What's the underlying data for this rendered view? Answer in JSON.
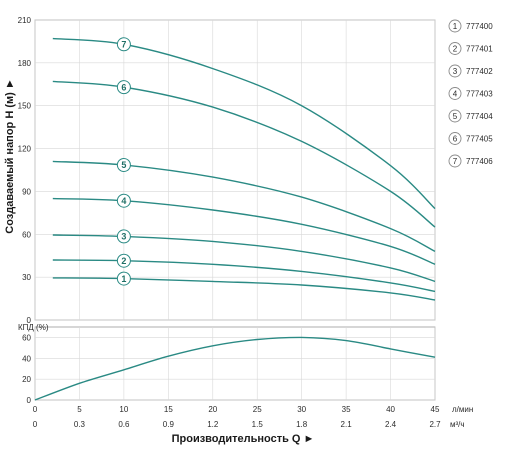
{
  "chart_data": [
    {
      "type": "line",
      "ylabel": "Создаваемый напор H (м) ►",
      "ylim": [
        0,
        210
      ],
      "yticks": [
        "0",
        "30",
        "60",
        "90",
        "120",
        "150",
        "180",
        "210"
      ],
      "xlim": [
        0,
        45
      ],
      "grid": true,
      "line_color": "#2a8a84",
      "series": [
        {
          "name": "1",
          "x": [
            2,
            10,
            20,
            30,
            40,
            45
          ],
          "y": [
            29.5,
            29,
            27,
            24.5,
            19,
            14
          ]
        },
        {
          "name": "2",
          "x": [
            2,
            10,
            20,
            30,
            40,
            45
          ],
          "y": [
            42,
            41.5,
            39,
            34,
            26,
            20
          ]
        },
        {
          "name": "3",
          "x": [
            2,
            10,
            20,
            30,
            40,
            45
          ],
          "y": [
            59.5,
            58.5,
            55,
            48,
            36.5,
            27
          ]
        },
        {
          "name": "4",
          "x": [
            2,
            10,
            20,
            30,
            40,
            45
          ],
          "y": [
            85,
            83.5,
            77,
            67,
            51.5,
            39
          ]
        },
        {
          "name": "5",
          "x": [
            2,
            10,
            20,
            30,
            40,
            45
          ],
          "y": [
            111,
            108.5,
            100,
            86,
            64,
            48
          ]
        },
        {
          "name": "6",
          "x": [
            2,
            10,
            20,
            30,
            40,
            45
          ],
          "y": [
            167,
            163,
            149,
            125,
            90,
            65
          ]
        },
        {
          "name": "7",
          "x": [
            2,
            10,
            20,
            30,
            40,
            45
          ],
          "y": [
            197,
            193,
            176,
            150,
            108,
            78
          ]
        }
      ],
      "marker_x": 10,
      "legend": [
        {
          "num": "1",
          "model": "777400"
        },
        {
          "num": "2",
          "model": "777401"
        },
        {
          "num": "3",
          "model": "777402"
        },
        {
          "num": "4",
          "model": "777403"
        },
        {
          "num": "5",
          "model": "777404"
        },
        {
          "num": "6",
          "model": "777405"
        },
        {
          "num": "7",
          "model": "777406"
        }
      ],
      "legend_placement": "right"
    },
    {
      "type": "line",
      "ylabel": "КПД (%)",
      "ylim": [
        0,
        70
      ],
      "yticks": [
        "0",
        "20",
        "40",
        "60"
      ],
      "xlim": [
        0,
        45
      ],
      "grid": true,
      "line_color": "#2a8a84",
      "series": [
        {
          "name": "КПД",
          "x": [
            0,
            5,
            10,
            15,
            20,
            25,
            30,
            35,
            40,
            45
          ],
          "y": [
            0,
            16,
            29,
            42,
            52,
            58,
            60,
            57,
            49,
            41
          ]
        }
      ]
    }
  ],
  "x_axis": {
    "ticks_lmin": [
      "0",
      "5",
      "10",
      "15",
      "20",
      "25",
      "30",
      "35",
      "40",
      "45"
    ],
    "ticks_m3h": [
      "0",
      "0.3",
      "0.6",
      "0.9",
      "1.2",
      "1.5",
      "1.8",
      "2.1",
      "2.4",
      "2.7"
    ],
    "unit_lmin": "л/мин",
    "unit_m3h": "м³/ч",
    "title": "Производительность Q ►"
  }
}
